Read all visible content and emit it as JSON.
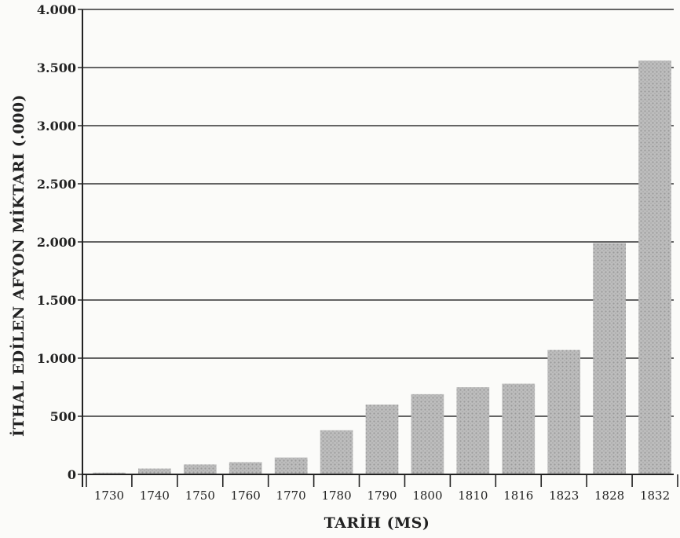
{
  "chart_data": {
    "type": "bar",
    "xlabel": "TARİH (MS)",
    "ylabel": "İTHAL EDİLEN AFYON MİKTARI (.000)",
    "ylim": [
      0,
      4000
    ],
    "yticks": [
      0,
      500,
      1000,
      1500,
      2000,
      2500,
      3000,
      3500,
      4000
    ],
    "ytick_labels": [
      "0",
      "500",
      "1.000",
      "1.500",
      "2.000",
      "2.500",
      "3.000",
      "3.500",
      "4.000"
    ],
    "categories": [
      "1730",
      "1740",
      "1750",
      "1760",
      "1770",
      "1780",
      "1790",
      "1800",
      "1810",
      "1816",
      "1823",
      "1828",
      "1832"
    ],
    "values": [
      15,
      50,
      85,
      105,
      145,
      380,
      600,
      690,
      750,
      780,
      1070,
      1990,
      3560
    ],
    "grid": true,
    "bar_color": "#b9b9b9"
  }
}
